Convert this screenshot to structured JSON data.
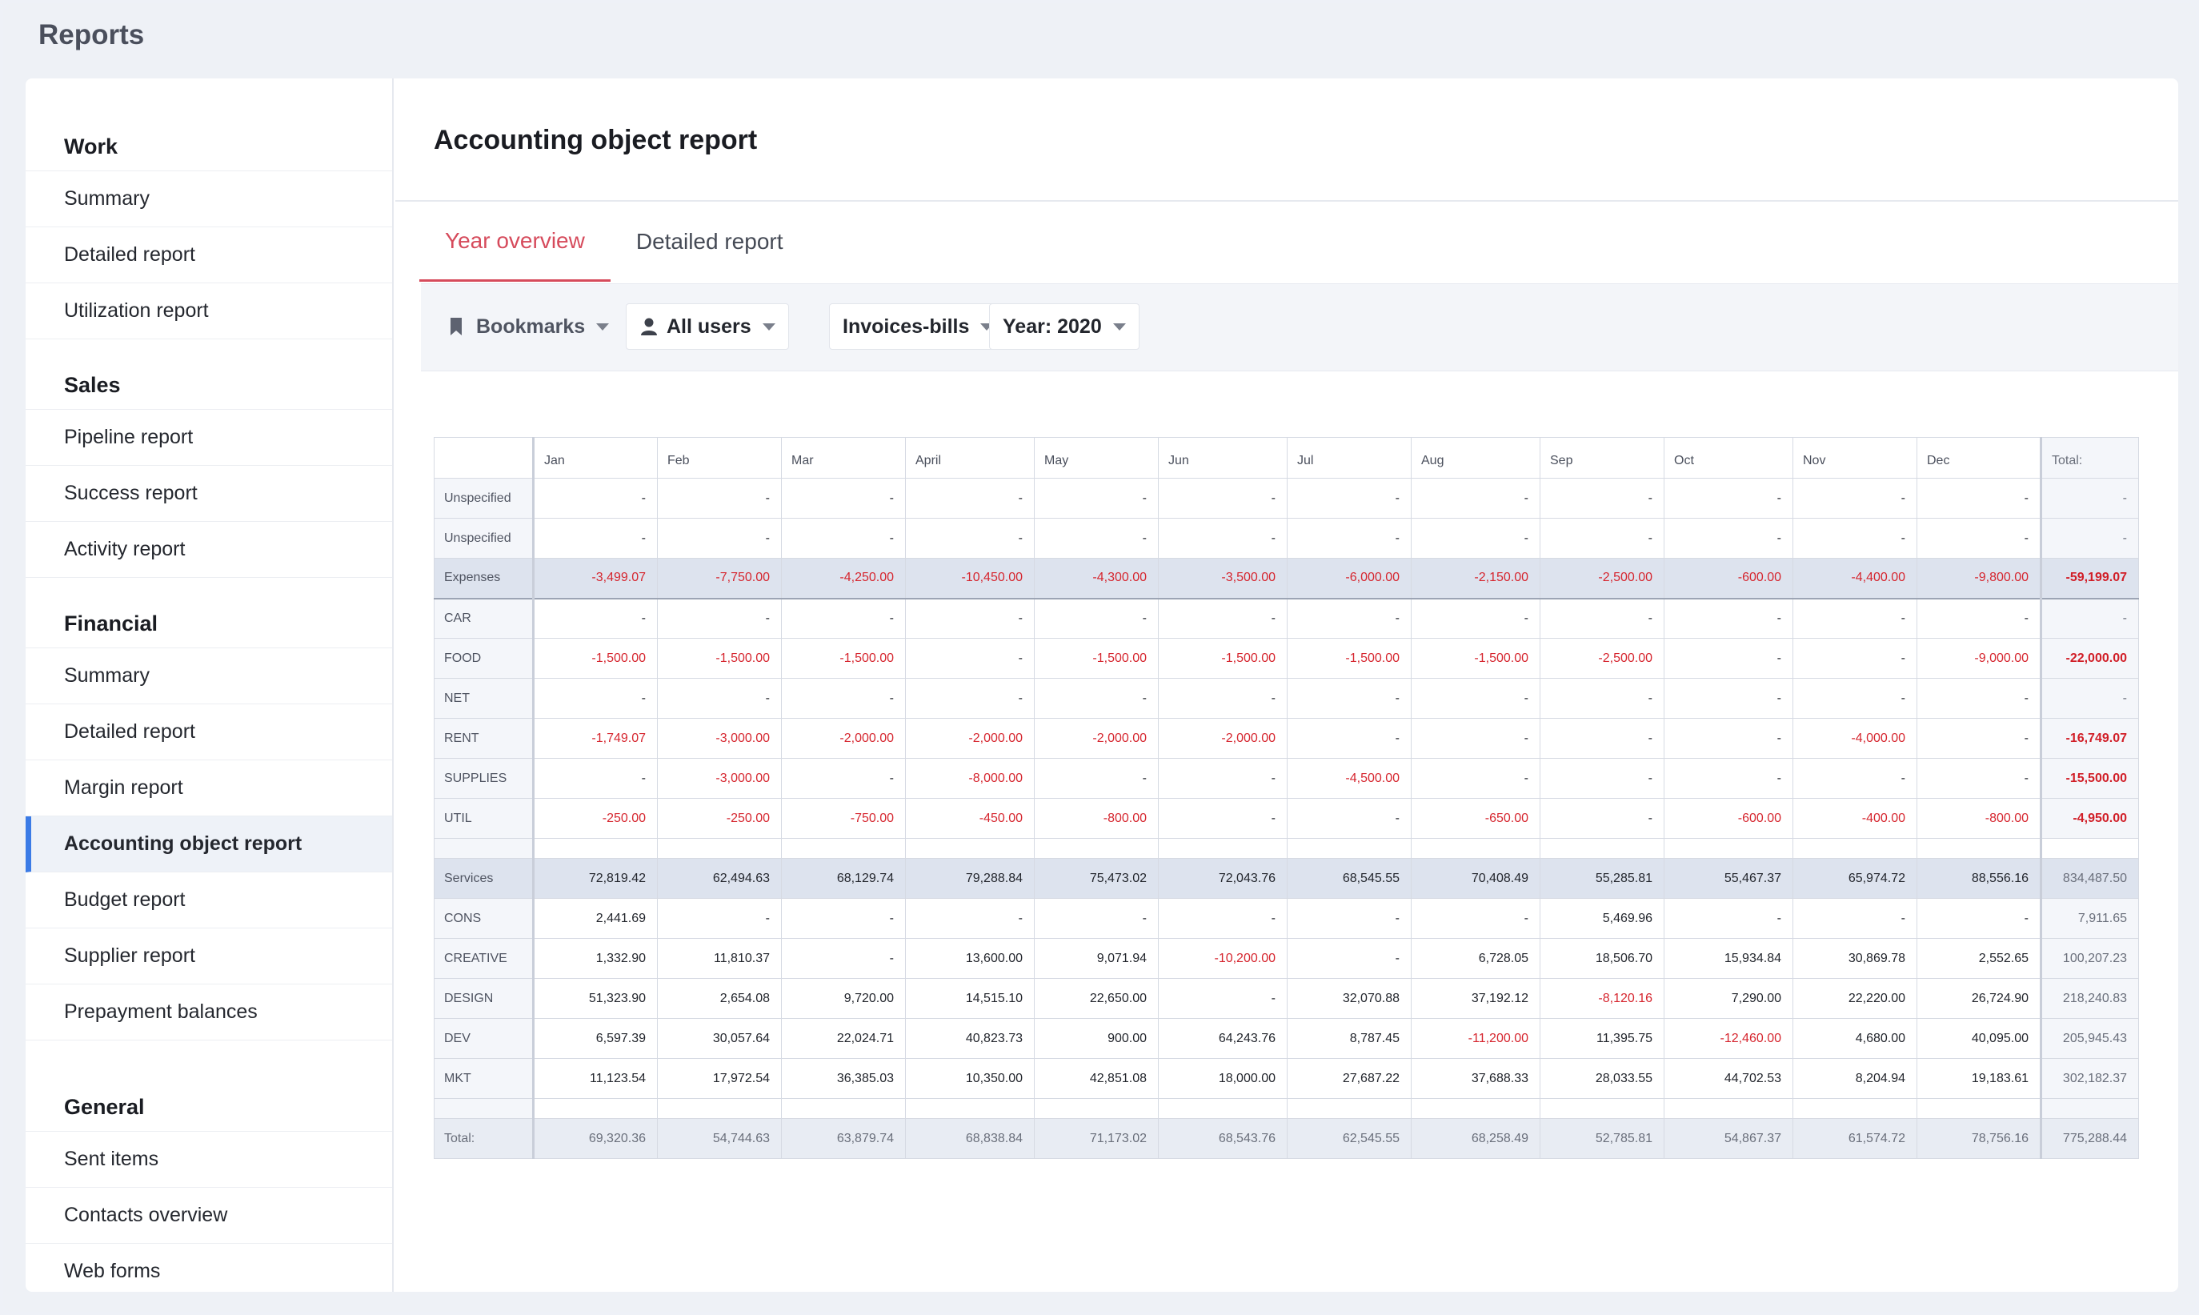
{
  "app": {
    "title": "Reports"
  },
  "sidebar": {
    "sections": [
      {
        "heading": "Work",
        "items": [
          "Summary",
          "Detailed report",
          "Utilization report"
        ]
      },
      {
        "heading": "Sales",
        "items": [
          "Pipeline report",
          "Success report",
          "Activity report"
        ]
      },
      {
        "heading": "Financial",
        "items": [
          "Summary",
          "Detailed report",
          "Margin report",
          "Accounting object report",
          "Budget report",
          "Supplier report",
          "Prepayment balances"
        ]
      },
      {
        "heading": "General",
        "items": [
          "Sent items",
          "Contacts overview",
          "Web forms"
        ]
      }
    ],
    "active_item": "Accounting object report"
  },
  "main": {
    "title": "Accounting object report",
    "tabs": [
      {
        "label": "Year overview",
        "active": true
      },
      {
        "label": "Detailed report",
        "active": false
      }
    ],
    "toolbar": {
      "bookmarks": "Bookmarks",
      "users": "All users",
      "type": "Invoices-bills",
      "year": "Year: 2020"
    }
  },
  "table": {
    "columns": [
      "Jan",
      "Feb",
      "Mar",
      "April",
      "May",
      "Jun",
      "Jul",
      "Aug",
      "Sep",
      "Oct",
      "Nov",
      "Dec"
    ],
    "total_label": "Total:",
    "rows": [
      {
        "label": "Unspecified",
        "kind": "plain",
        "values": [
          "-",
          "-",
          "-",
          "-",
          "-",
          "-",
          "-",
          "-",
          "-",
          "-",
          "-",
          "-"
        ],
        "total": "-"
      },
      {
        "label": "Unspecified",
        "kind": "plain",
        "values": [
          "-",
          "-",
          "-",
          "-",
          "-",
          "-",
          "-",
          "-",
          "-",
          "-",
          "-",
          "-"
        ],
        "total": "-"
      },
      {
        "label": "Expenses",
        "kind": "group-expenses",
        "values": [
          "-3,499.07",
          "-7,750.00",
          "-4,250.00",
          "-10,450.00",
          "-4,300.00",
          "-3,500.00",
          "-6,000.00",
          "-2,150.00",
          "-2,500.00",
          "-600.00",
          "-4,400.00",
          "-9,800.00"
        ],
        "total": "-59,199.07"
      },
      {
        "label": "CAR",
        "kind": "plain",
        "values": [
          "-",
          "-",
          "-",
          "-",
          "-",
          "-",
          "-",
          "-",
          "-",
          "-",
          "-",
          "-"
        ],
        "total": "-"
      },
      {
        "label": "FOOD",
        "kind": "plain",
        "values": [
          "-1,500.00",
          "-1,500.00",
          "-1,500.00",
          "-",
          "-1,500.00",
          "-1,500.00",
          "-1,500.00",
          "-1,500.00",
          "-2,500.00",
          "-",
          "-",
          "-9,000.00"
        ],
        "total": "-22,000.00"
      },
      {
        "label": "NET",
        "kind": "plain",
        "values": [
          "-",
          "-",
          "-",
          "-",
          "-",
          "-",
          "-",
          "-",
          "-",
          "-",
          "-",
          "-"
        ],
        "total": "-"
      },
      {
        "label": "RENT",
        "kind": "plain",
        "values": [
          "-1,749.07",
          "-3,000.00",
          "-2,000.00",
          "-2,000.00",
          "-2,000.00",
          "-2,000.00",
          "-",
          "-",
          "-",
          "-",
          "-4,000.00",
          "-"
        ],
        "total": "-16,749.07"
      },
      {
        "label": "SUPPLIES",
        "kind": "plain",
        "values": [
          "-",
          "-3,000.00",
          "-",
          "-8,000.00",
          "-",
          "-",
          "-4,500.00",
          "-",
          "-",
          "-",
          "-",
          "-"
        ],
        "total": "-15,500.00"
      },
      {
        "label": "UTIL",
        "kind": "plain",
        "values": [
          "-250.00",
          "-250.00",
          "-750.00",
          "-450.00",
          "-800.00",
          "-",
          "-",
          "-650.00",
          "-",
          "-600.00",
          "-400.00",
          "-800.00"
        ],
        "total": "-4,950.00"
      },
      {
        "label": "",
        "kind": "spacer",
        "values": [
          "",
          "",
          "",
          "",
          "",
          "",
          "",
          "",
          "",
          "",
          "",
          ""
        ],
        "total": ""
      },
      {
        "label": "Services",
        "kind": "group",
        "values": [
          "72,819.42",
          "62,494.63",
          "68,129.74",
          "79,288.84",
          "75,473.02",
          "72,043.76",
          "68,545.55",
          "70,408.49",
          "55,285.81",
          "55,467.37",
          "65,974.72",
          "88,556.16"
        ],
        "total": "834,487.50"
      },
      {
        "label": "CONS",
        "kind": "plain",
        "values": [
          "2,441.69",
          "-",
          "-",
          "-",
          "-",
          "-",
          "-",
          "-",
          "5,469.96",
          "-",
          "-",
          "-"
        ],
        "total": "7,911.65"
      },
      {
        "label": "CREATIVE",
        "kind": "plain",
        "values": [
          "1,332.90",
          "11,810.37",
          "-",
          "13,600.00",
          "9,071.94",
          "-10,200.00",
          "-",
          "6,728.05",
          "18,506.70",
          "15,934.84",
          "30,869.78",
          "2,552.65"
        ],
        "total": "100,207.23"
      },
      {
        "label": "DESIGN",
        "kind": "plain",
        "values": [
          "51,323.90",
          "2,654.08",
          "9,720.00",
          "14,515.10",
          "22,650.00",
          "-",
          "32,070.88",
          "37,192.12",
          "-8,120.16",
          "7,290.00",
          "22,220.00",
          "26,724.90"
        ],
        "total": "218,240.83"
      },
      {
        "label": "DEV",
        "kind": "plain",
        "values": [
          "6,597.39",
          "30,057.64",
          "22,024.71",
          "40,823.73",
          "900.00",
          "64,243.76",
          "8,787.45",
          "-11,200.00",
          "11,395.75",
          "-12,460.00",
          "4,680.00",
          "40,095.00"
        ],
        "total": "205,945.43"
      },
      {
        "label": "MKT",
        "kind": "plain",
        "values": [
          "11,123.54",
          "17,972.54",
          "36,385.03",
          "10,350.00",
          "42,851.08",
          "18,000.00",
          "27,687.22",
          "37,688.33",
          "28,033.55",
          "44,702.53",
          "8,204.94",
          "19,183.61"
        ],
        "total": "302,182.37"
      },
      {
        "label": "",
        "kind": "spacer2",
        "values": [
          "",
          "",
          "",
          "",
          "",
          "",
          "",
          "",
          "",
          "",
          "",
          ""
        ],
        "total": ""
      },
      {
        "label": "Total:",
        "kind": "total-row",
        "values": [
          "69,320.36",
          "54,744.63",
          "63,879.74",
          "68,838.84",
          "71,173.02",
          "68,543.76",
          "62,545.55",
          "68,258.49",
          "52,785.81",
          "54,867.37",
          "61,574.72",
          "78,756.16"
        ],
        "total": "775,288.44"
      }
    ]
  },
  "colors": {
    "accent": "#d64b5c",
    "active_bar": "#3b7be6",
    "negative": "#d6262f"
  },
  "icons": {
    "bookmarks": "bookmark-icon",
    "users": "user-icon",
    "dropdown": "chevron-down-icon"
  }
}
